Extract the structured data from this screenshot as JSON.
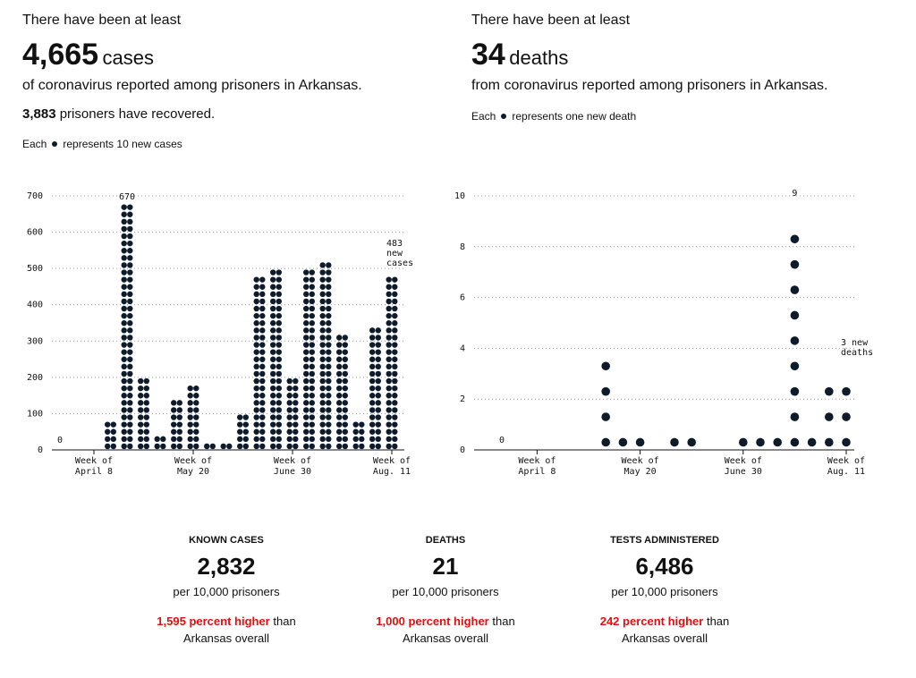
{
  "left_header": {
    "intro": "There have been at least",
    "number": "4,665",
    "unit": "cases",
    "sub": "of coronavirus reported among prisoners in Arkansas.",
    "recovered_number": "3,883",
    "recovered_text": "prisoners have recovered.",
    "legend_prefix": "Each",
    "legend_suffix": "represents 10 new cases"
  },
  "right_header": {
    "intro": "There have been at least",
    "number": "34",
    "unit": "deaths",
    "sub": "from coronavirus reported among prisoners in Arkansas.",
    "legend_prefix": "Each",
    "legend_suffix": "represents one new death"
  },
  "chart_data": [
    {
      "type": "dot",
      "categories": [
        null,
        null,
        "Week of April 8",
        null,
        null,
        null,
        null,
        null,
        "Week of May 20",
        null,
        null,
        null,
        null,
        null,
        "Week of June 30",
        null,
        null,
        null,
        null,
        null,
        "Week of Aug. 11"
      ],
      "values": [
        0,
        0,
        0,
        70,
        670,
        200,
        30,
        130,
        170,
        10,
        10,
        90,
        470,
        490,
        190,
        490,
        510,
        310,
        70,
        330,
        483
      ],
      "value_labels": [
        "0",
        null,
        null,
        null,
        "670",
        null,
        null,
        null,
        null,
        null,
        null,
        null,
        null,
        null,
        null,
        null,
        null,
        null,
        null,
        null,
        "483 new cases"
      ],
      "color": "#0d1b2a",
      "ylim": [
        0,
        700
      ],
      "yticks": [
        0,
        100,
        200,
        300,
        400,
        500,
        600,
        700
      ],
      "grid": true
    },
    {
      "type": "dot",
      "categories": [
        null,
        null,
        "Week of April 8",
        null,
        null,
        null,
        null,
        null,
        "Week of May 20",
        null,
        null,
        null,
        null,
        null,
        "Week of June 30",
        null,
        null,
        null,
        null,
        null,
        "Week of Aug. 11"
      ],
      "values": [
        0,
        0,
        0,
        0,
        0,
        0,
        4,
        1,
        1,
        0,
        1,
        1,
        0,
        0,
        1,
        1,
        1,
        9,
        1,
        3,
        3
      ],
      "value_labels": [
        "0",
        null,
        null,
        null,
        null,
        null,
        null,
        null,
        null,
        null,
        null,
        null,
        null,
        null,
        null,
        null,
        null,
        "9",
        null,
        null,
        "3 new deaths"
      ],
      "color": "#0d1b2a",
      "ylim": [
        0,
        10
      ],
      "yticks": [
        0,
        2,
        4,
        6,
        8,
        10
      ],
      "grid": true
    }
  ],
  "stats": [
    {
      "label": "KNOWN CASES",
      "value": "2,832",
      "unit": "per 10,000 prisoners",
      "highlight": "1,595 percent higher",
      "rest": "than Arkansas overall"
    },
    {
      "label": "DEATHS",
      "value": "21",
      "unit": "per 10,000 prisoners",
      "highlight": "1,000 percent higher",
      "rest": "than Arkansas overall"
    },
    {
      "label": "TESTS ADMINISTERED",
      "value": "6,486",
      "unit": "per 10,000 prisoners",
      "highlight": "242 percent higher",
      "rest": "than Arkansas overall"
    }
  ]
}
